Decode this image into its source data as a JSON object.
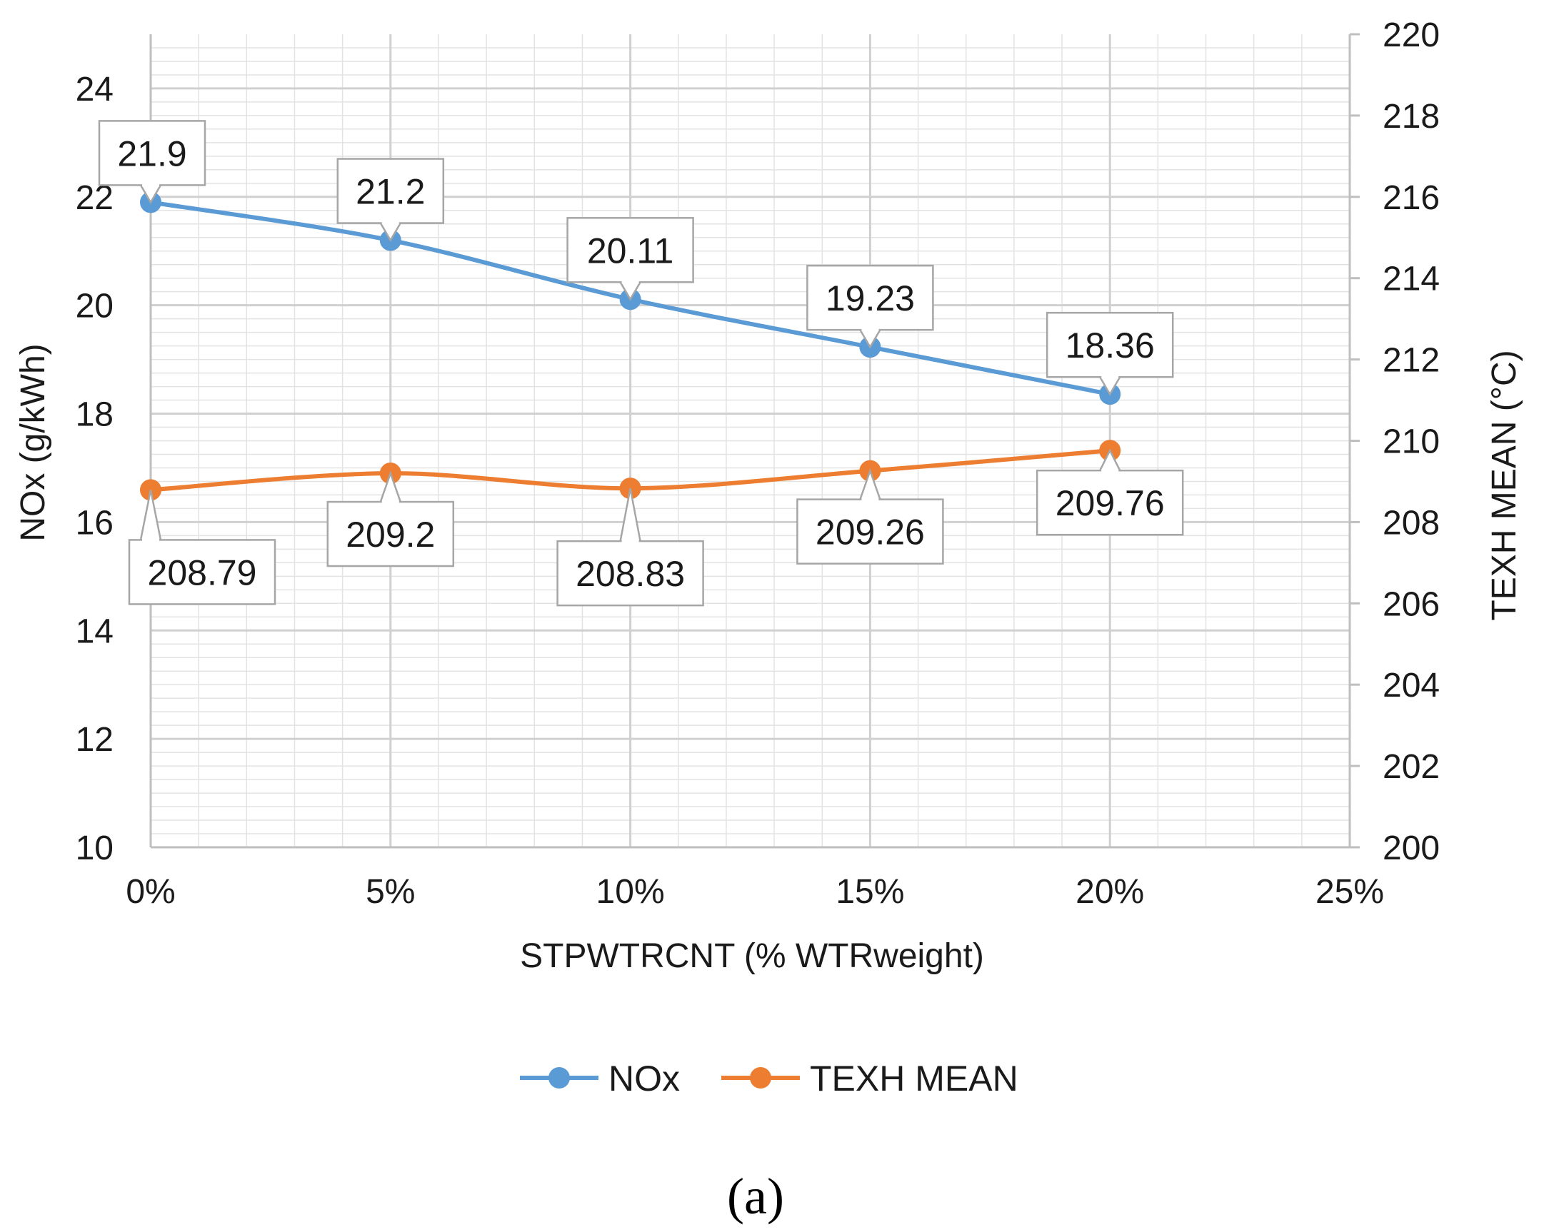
{
  "chart_data": {
    "type": "line",
    "title": "",
    "xlabel": "STPWTRCNT (% WTRweight)",
    "ylabel": "NOx (g/kWh)",
    "y2label": "TEXH MEAN (°C)",
    "x": [
      0,
      5,
      10,
      15,
      20
    ],
    "x_tick_values": [
      0,
      5,
      10,
      15,
      20,
      25
    ],
    "x_tick_labels": [
      "0%",
      "5%",
      "10%",
      "15%",
      "20%",
      "25%"
    ],
    "xlim": [
      0,
      25
    ],
    "ylim": [
      10,
      25
    ],
    "y_tick_values": [
      10,
      12,
      14,
      16,
      18,
      20,
      22,
      24
    ],
    "y_tick_labels": [
      "10",
      "12",
      "14",
      "16",
      "18",
      "20",
      "22",
      "24"
    ],
    "y2lim": [
      200,
      220
    ],
    "y2_tick_values": [
      200,
      202,
      204,
      206,
      208,
      210,
      212,
      214,
      216,
      218,
      220
    ],
    "y2_tick_labels": [
      "200",
      "202",
      "204",
      "206",
      "208",
      "210",
      "212",
      "214",
      "216",
      "218",
      "220"
    ],
    "grid": true,
    "legend_position": "bottom",
    "series": [
      {
        "name": "NOx",
        "axis": "left",
        "color": "#5B9BD5",
        "values": [
          21.9,
          21.2,
          20.11,
          19.23,
          18.36
        ],
        "labels": [
          "21.9",
          "21.2",
          "20.11",
          "19.23",
          "18.36"
        ]
      },
      {
        "name": "TEXH MEAN",
        "axis": "right",
        "color": "#ED7D31",
        "values": [
          208.79,
          209.2,
          208.83,
          209.26,
          209.76
        ],
        "labels": [
          "208.79",
          "209.2",
          "208.83",
          "209.26",
          "209.76"
        ]
      }
    ],
    "caption": "(a)"
  }
}
